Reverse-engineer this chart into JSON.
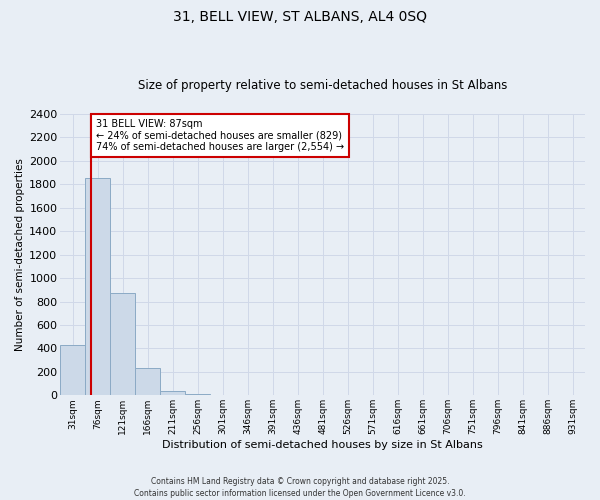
{
  "title1": "31, BELL VIEW, ST ALBANS, AL4 0SQ",
  "title2": "Size of property relative to semi-detached houses in St Albans",
  "xlabel": "Distribution of semi-detached houses by size in St Albans",
  "ylabel": "Number of semi-detached properties",
  "bin_labels": [
    "31sqm",
    "76sqm",
    "121sqm",
    "166sqm",
    "211sqm",
    "256sqm",
    "301sqm",
    "346sqm",
    "391sqm",
    "436sqm",
    "481sqm",
    "526sqm",
    "571sqm",
    "616sqm",
    "661sqm",
    "706sqm",
    "751sqm",
    "796sqm",
    "841sqm",
    "886sqm",
    "931sqm"
  ],
  "bin_edges": [
    31,
    76,
    121,
    166,
    211,
    256,
    301,
    346,
    391,
    436,
    481,
    526,
    571,
    616,
    661,
    706,
    751,
    796,
    841,
    886,
    931,
    976
  ],
  "bar_heights": [
    430,
    1850,
    870,
    235,
    35,
    8,
    4,
    2,
    1,
    1,
    0,
    0,
    0,
    0,
    0,
    0,
    0,
    0,
    0,
    0,
    0
  ],
  "bar_color": "#ccd9e8",
  "bar_edgecolor": "#8baac5",
  "property_size": 87,
  "property_label": "31 BELL VIEW: 87sqm",
  "annotation_line1": "← 24% of semi-detached houses are smaller (829)",
  "annotation_line2": "74% of semi-detached houses are larger (2,554) →",
  "annotation_box_color": "#ffffff",
  "annotation_box_edgecolor": "#cc0000",
  "vline_color": "#cc0000",
  "ylim": [
    0,
    2400
  ],
  "yticks": [
    0,
    200,
    400,
    600,
    800,
    1000,
    1200,
    1400,
    1600,
    1800,
    2000,
    2200,
    2400
  ],
  "grid_color": "#d0d8e8",
  "bg_color": "#e8eef5",
  "footer": "Contains HM Land Registry data © Crown copyright and database right 2025.\nContains public sector information licensed under the Open Government Licence v3.0."
}
